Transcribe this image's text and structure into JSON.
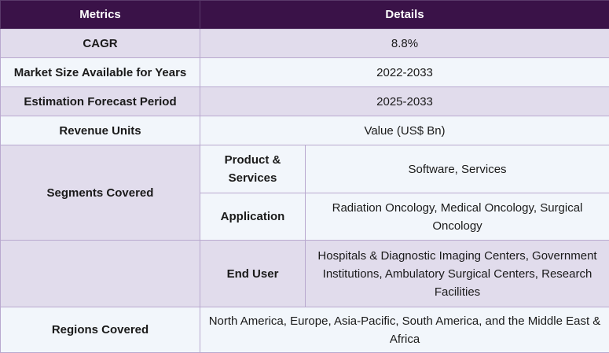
{
  "header": {
    "metrics": "Metrics",
    "details": "Details"
  },
  "rows": {
    "cagr": {
      "label": "CAGR",
      "value": "8.8%"
    },
    "market_size": {
      "label": "Market Size Available for Years",
      "value": "2022-2033"
    },
    "forecast": {
      "label": "Estimation Forecast Period",
      "value": "2025-2033"
    },
    "revenue_units": {
      "label": "Revenue Units",
      "value": "Value (US$ Bn)"
    },
    "segments": {
      "label": "Segments Covered",
      "product_services": {
        "label": "Product & Services",
        "value": "Software, Services"
      },
      "application": {
        "label": "Application",
        "value": "Radiation Oncology, Medical Oncology, Surgical Oncology"
      },
      "end_user": {
        "label": "End User",
        "value": "Hospitals & Diagnostic Imaging Centers, Government Institutions, Ambulatory Surgical Centers, Research Facilities"
      }
    },
    "regions": {
      "label": "Regions Covered",
      "value": "North America, Europe, Asia-Pacific, South America, and the Middle East & Africa"
    }
  }
}
